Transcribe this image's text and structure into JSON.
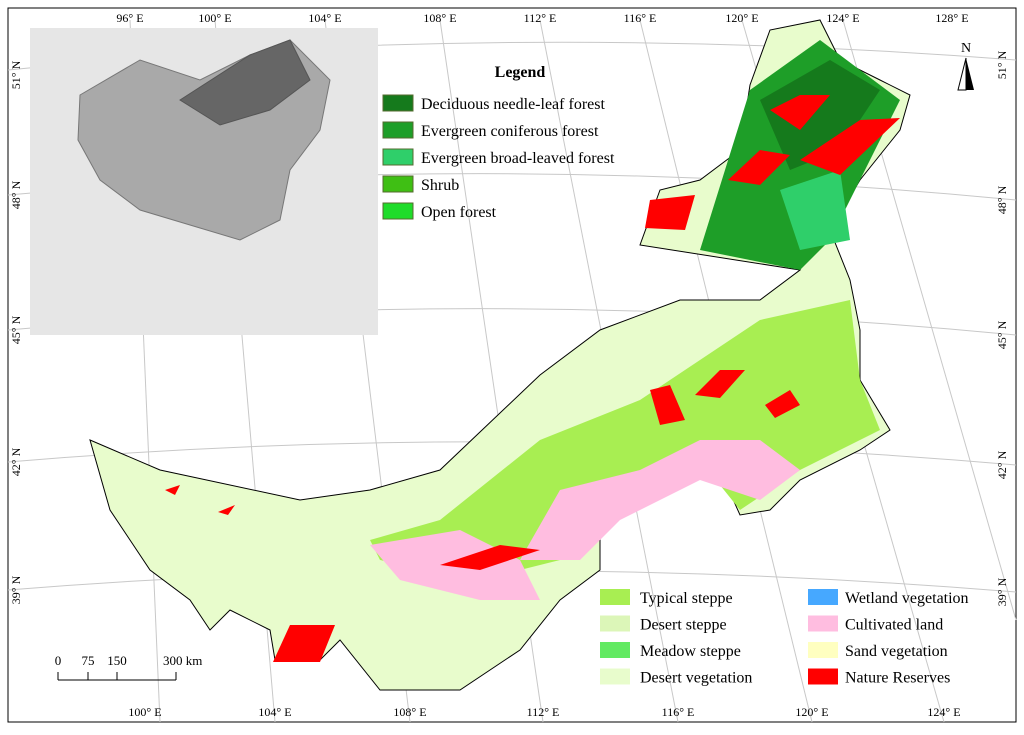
{
  "legend": {
    "title": "Legend",
    "items": [
      {
        "label": "Deciduous needle-leaf forest",
        "color": "#157a1c"
      },
      {
        "label": "Evergreen coniferous forest",
        "color": "#1e9e28"
      },
      {
        "label": "Evergreen broad-leaved forest",
        "color": "#2fcf6a"
      },
      {
        "label": "Shrub",
        "color": "#3fbf14"
      },
      {
        "label": "Open forest",
        "color": "#1fdc2a"
      }
    ]
  },
  "legend_bottom": {
    "items": [
      {
        "label": "Typical steppe",
        "color": "#a8ee52"
      },
      {
        "label": "Desert steppe",
        "color": "#dcf6b8"
      },
      {
        "label": "Meadow steppe",
        "color": "#62ea62"
      },
      {
        "label": "Desert vegetation",
        "color": "#e8fccc"
      },
      {
        "label": "Wetland vegetation",
        "color": "#46a8ff"
      },
      {
        "label": "Cultivated land",
        "color": "#ffbde0"
      },
      {
        "label": "Sand vegetation",
        "color": "#ffffc0"
      },
      {
        "label": "Nature Reserves",
        "color": "#ff0000"
      }
    ]
  },
  "top_labels": [
    "96° E",
    "100° E",
    "104° E",
    "108° E",
    "112° E",
    "116° E",
    "120° E",
    "124° E",
    "128° E"
  ],
  "bottom_labels": [
    "100° E",
    "104° E",
    "108° E",
    "112° E",
    "116° E",
    "120° E",
    "124° E"
  ],
  "left_labels": [
    "51° N",
    "48° N",
    "45° N",
    "42° N",
    "39° N"
  ],
  "right_labels": [
    "51° N",
    "48° N",
    "45° N",
    "42° N",
    "39° N"
  ],
  "scale_bar": [
    "0",
    "75",
    "150",
    "300 km"
  ],
  "north": "N"
}
